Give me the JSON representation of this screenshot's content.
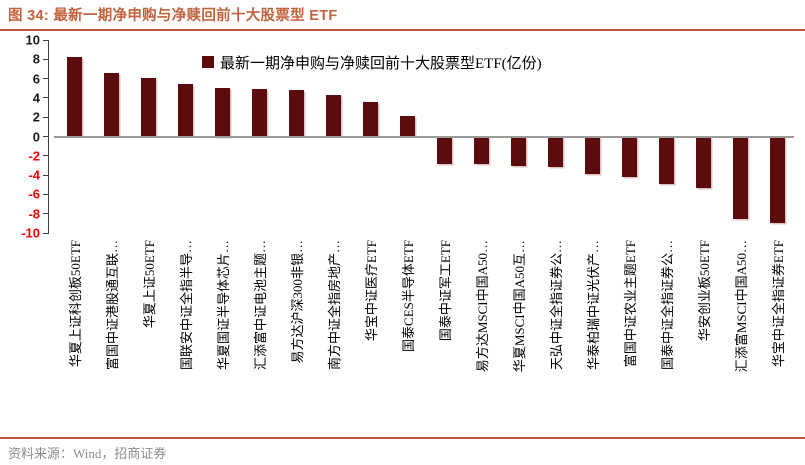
{
  "header": {
    "title": "图 34: 最新一期净申购与净赎回前十大股票型 ETF"
  },
  "footer": {
    "source": "资料来源：Wind，招商证券"
  },
  "colors": {
    "accent_rule": "#b4573c",
    "title_text": "#c0633e",
    "bar": "#5c0c0c",
    "negative_tick": "#ff0000",
    "positive_tick": "#1a1a1a",
    "zero_line": "#9a9a9a",
    "source_text": "#8c8c8c"
  },
  "chart_data": {
    "type": "bar",
    "title": "最新一期净申购与净赎回前十大股票型 ETF",
    "legend": "最新一期净申购与净赎回前十大股票型ETF(亿份)",
    "legend_position": "top-center",
    "grid": false,
    "ylim": [
      -10,
      10
    ],
    "yticks": [
      10,
      8,
      6,
      4,
      2,
      0,
      -2,
      -4,
      -6,
      -8,
      -10
    ],
    "ylabel": "",
    "xlabel": "",
    "unit": "亿份",
    "categories": [
      "华夏上证科创板50ETF",
      "富国中证港股通互联…",
      "华夏上证50ETF",
      "国联安中证全指半导…",
      "华夏国证半导体芯片…",
      "汇添富中证电池主题…",
      "易方达沪深300非银…",
      "南方中证全指房地产…",
      "华宝中证医疗ETF",
      "国泰CES半导体ETF",
      "国泰中证军工ETF",
      "易方达MSCI中国A50…",
      "华夏MSCI中国A50互…",
      "天弘中证全指证券公…",
      "华泰柏瑞中证光伏产…",
      "富国中证农业主题ETF",
      "国泰中证全指证券公…",
      "华安创业板50ETF",
      "汇添富MSCI中国A50…",
      "华宝中证全指证券ETF"
    ],
    "values": [
      8.2,
      6.6,
      6.1,
      5.4,
      5.0,
      4.9,
      4.8,
      4.3,
      3.6,
      2.1,
      -2.9,
      -2.9,
      -3.1,
      -3.2,
      -3.9,
      -4.2,
      -4.9,
      -5.3,
      -8.6,
      -9.0
    ]
  }
}
